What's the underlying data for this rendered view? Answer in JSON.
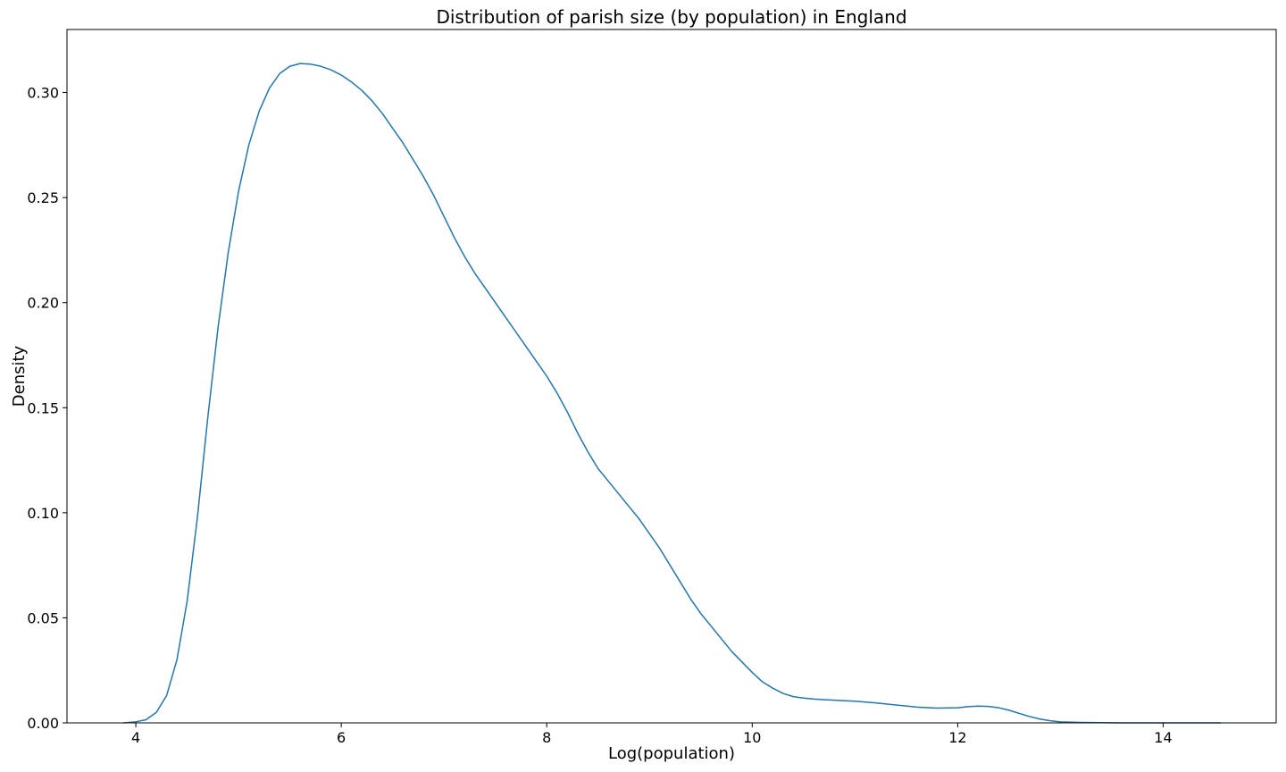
{
  "chart_data": {
    "type": "line",
    "title": "Distribution of parish size (by population) in England",
    "xlabel": "Log(population)",
    "ylabel": "Density",
    "xlim": [
      3.33,
      15.1
    ],
    "ylim": [
      0,
      0.33
    ],
    "xticks": [
      {
        "value": 4,
        "label": "4"
      },
      {
        "value": 6,
        "label": "6"
      },
      {
        "value": 8,
        "label": "8"
      },
      {
        "value": 10,
        "label": "10"
      },
      {
        "value": 12,
        "label": "12"
      },
      {
        "value": 14,
        "label": "14"
      }
    ],
    "yticks": [
      {
        "value": 0.0,
        "label": "0.00"
      },
      {
        "value": 0.05,
        "label": "0.05"
      },
      {
        "value": 0.1,
        "label": "0.10"
      },
      {
        "value": 0.15,
        "label": "0.15"
      },
      {
        "value": 0.2,
        "label": "0.20"
      },
      {
        "value": 0.25,
        "label": "0.25"
      },
      {
        "value": 0.3,
        "label": "0.30"
      }
    ],
    "grid": false,
    "legend": null,
    "series": [
      {
        "color": "#1f77b4",
        "x": [
          3.88,
          4.0,
          4.1,
          4.2,
          4.3,
          4.4,
          4.5,
          4.6,
          4.7,
          4.8,
          4.9,
          5.0,
          5.1,
          5.2,
          5.3,
          5.4,
          5.5,
          5.6,
          5.7,
          5.8,
          5.9,
          6.0,
          6.1,
          6.2,
          6.3,
          6.4,
          6.5,
          6.6,
          6.7,
          6.8,
          6.9,
          7.0,
          7.1,
          7.2,
          7.3,
          7.4,
          7.5,
          7.6,
          7.7,
          7.8,
          7.9,
          8.0,
          8.1,
          8.2,
          8.3,
          8.4,
          8.5,
          8.6,
          8.7,
          8.8,
          8.9,
          9.0,
          9.1,
          9.2,
          9.3,
          9.4,
          9.5,
          9.6,
          9.7,
          9.8,
          9.9,
          10.0,
          10.1,
          10.2,
          10.3,
          10.4,
          10.5,
          10.6,
          10.7,
          10.8,
          10.9,
          11.0,
          11.2,
          11.4,
          11.6,
          11.8,
          12.0,
          12.1,
          12.2,
          12.3,
          12.4,
          12.5,
          12.6,
          12.7,
          12.8,
          12.9,
          13.0,
          13.2,
          13.4,
          13.6,
          13.8,
          14.0,
          14.2,
          14.4,
          14.56
        ],
        "y": [
          0.0,
          0.0005,
          0.0015,
          0.005,
          0.013,
          0.03,
          0.058,
          0.098,
          0.145,
          0.188,
          0.224,
          0.253,
          0.275,
          0.291,
          0.302,
          0.309,
          0.3125,
          0.3138,
          0.3135,
          0.3125,
          0.3108,
          0.3083,
          0.305,
          0.301,
          0.296,
          0.29,
          0.283,
          0.276,
          0.268,
          0.26,
          0.251,
          0.241,
          0.231,
          0.222,
          0.214,
          0.207,
          0.2,
          0.193,
          0.186,
          0.179,
          0.172,
          0.165,
          0.157,
          0.148,
          0.138,
          0.129,
          0.121,
          0.115,
          0.109,
          0.103,
          0.097,
          0.09,
          0.083,
          0.075,
          0.067,
          0.059,
          0.052,
          0.046,
          0.04,
          0.034,
          0.029,
          0.024,
          0.0195,
          0.0165,
          0.014,
          0.0125,
          0.0118,
          0.0113,
          0.011,
          0.0108,
          0.0105,
          0.0103,
          0.0095,
          0.0085,
          0.0075,
          0.007,
          0.0072,
          0.0077,
          0.008,
          0.0078,
          0.0072,
          0.006,
          0.0045,
          0.003,
          0.0018,
          0.001,
          0.0005,
          0.0002,
          0.0001,
          0.0,
          0.0,
          0.0,
          0.0,
          0.0,
          0.0
        ]
      }
    ]
  }
}
